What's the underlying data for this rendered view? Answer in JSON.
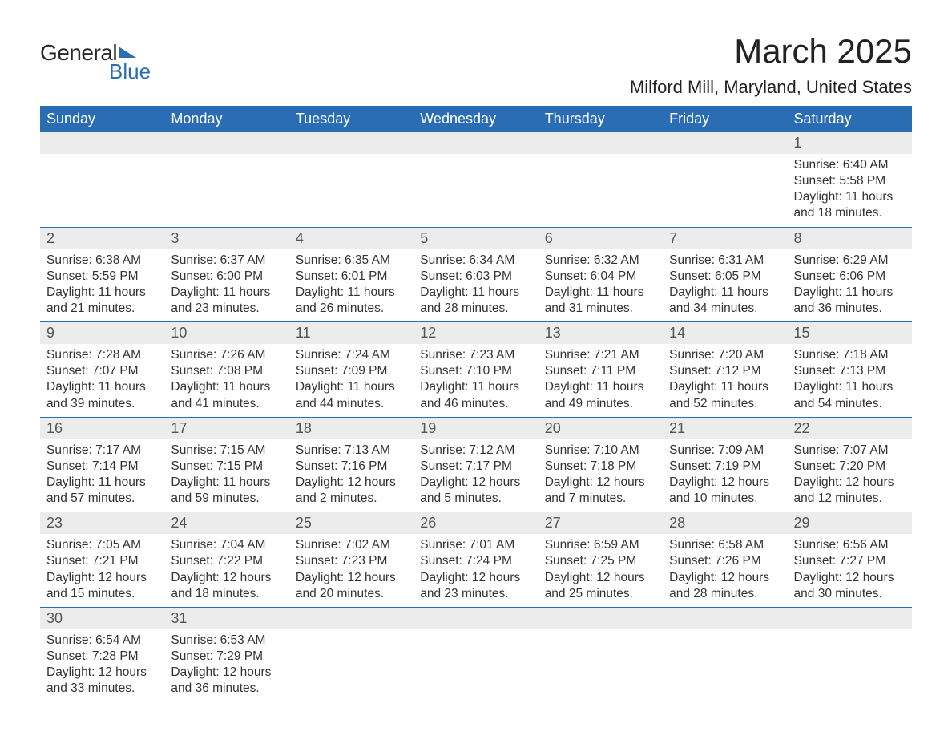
{
  "brand": {
    "general": "General",
    "blue": "Blue"
  },
  "title": "March 2025",
  "location": "Milford Mill, Maryland, United States",
  "colors": {
    "header_bg": "#2a6db5",
    "header_fg": "#ffffff",
    "daynum_bg": "#ececec",
    "text": "#333333",
    "row_divider": "#2a6db5",
    "background": "#ffffff"
  },
  "typography": {
    "title_fontsize": 42,
    "location_fontsize": 22,
    "header_fontsize": 18,
    "daynum_fontsize": 18,
    "data_fontsize": 15.5
  },
  "weekdays": [
    "Sunday",
    "Monday",
    "Tuesday",
    "Wednesday",
    "Thursday",
    "Friday",
    "Saturday"
  ],
  "weeks": [
    [
      null,
      null,
      null,
      null,
      null,
      null,
      {
        "n": "1",
        "sunrise": "6:40 AM",
        "sunset": "5:58 PM",
        "daylight": "11 hours and 18 minutes."
      }
    ],
    [
      {
        "n": "2",
        "sunrise": "6:38 AM",
        "sunset": "5:59 PM",
        "daylight": "11 hours and 21 minutes."
      },
      {
        "n": "3",
        "sunrise": "6:37 AM",
        "sunset": "6:00 PM",
        "daylight": "11 hours and 23 minutes."
      },
      {
        "n": "4",
        "sunrise": "6:35 AM",
        "sunset": "6:01 PM",
        "daylight": "11 hours and 26 minutes."
      },
      {
        "n": "5",
        "sunrise": "6:34 AM",
        "sunset": "6:03 PM",
        "daylight": "11 hours and 28 minutes."
      },
      {
        "n": "6",
        "sunrise": "6:32 AM",
        "sunset": "6:04 PM",
        "daylight": "11 hours and 31 minutes."
      },
      {
        "n": "7",
        "sunrise": "6:31 AM",
        "sunset": "6:05 PM",
        "daylight": "11 hours and 34 minutes."
      },
      {
        "n": "8",
        "sunrise": "6:29 AM",
        "sunset": "6:06 PM",
        "daylight": "11 hours and 36 minutes."
      }
    ],
    [
      {
        "n": "9",
        "sunrise": "7:28 AM",
        "sunset": "7:07 PM",
        "daylight": "11 hours and 39 minutes."
      },
      {
        "n": "10",
        "sunrise": "7:26 AM",
        "sunset": "7:08 PM",
        "daylight": "11 hours and 41 minutes."
      },
      {
        "n": "11",
        "sunrise": "7:24 AM",
        "sunset": "7:09 PM",
        "daylight": "11 hours and 44 minutes."
      },
      {
        "n": "12",
        "sunrise": "7:23 AM",
        "sunset": "7:10 PM",
        "daylight": "11 hours and 46 minutes."
      },
      {
        "n": "13",
        "sunrise": "7:21 AM",
        "sunset": "7:11 PM",
        "daylight": "11 hours and 49 minutes."
      },
      {
        "n": "14",
        "sunrise": "7:20 AM",
        "sunset": "7:12 PM",
        "daylight": "11 hours and 52 minutes."
      },
      {
        "n": "15",
        "sunrise": "7:18 AM",
        "sunset": "7:13 PM",
        "daylight": "11 hours and 54 minutes."
      }
    ],
    [
      {
        "n": "16",
        "sunrise": "7:17 AM",
        "sunset": "7:14 PM",
        "daylight": "11 hours and 57 minutes."
      },
      {
        "n": "17",
        "sunrise": "7:15 AM",
        "sunset": "7:15 PM",
        "daylight": "11 hours and 59 minutes."
      },
      {
        "n": "18",
        "sunrise": "7:13 AM",
        "sunset": "7:16 PM",
        "daylight": "12 hours and 2 minutes."
      },
      {
        "n": "19",
        "sunrise": "7:12 AM",
        "sunset": "7:17 PM",
        "daylight": "12 hours and 5 minutes."
      },
      {
        "n": "20",
        "sunrise": "7:10 AM",
        "sunset": "7:18 PM",
        "daylight": "12 hours and 7 minutes."
      },
      {
        "n": "21",
        "sunrise": "7:09 AM",
        "sunset": "7:19 PM",
        "daylight": "12 hours and 10 minutes."
      },
      {
        "n": "22",
        "sunrise": "7:07 AM",
        "sunset": "7:20 PM",
        "daylight": "12 hours and 12 minutes."
      }
    ],
    [
      {
        "n": "23",
        "sunrise": "7:05 AM",
        "sunset": "7:21 PM",
        "daylight": "12 hours and 15 minutes."
      },
      {
        "n": "24",
        "sunrise": "7:04 AM",
        "sunset": "7:22 PM",
        "daylight": "12 hours and 18 minutes."
      },
      {
        "n": "25",
        "sunrise": "7:02 AM",
        "sunset": "7:23 PM",
        "daylight": "12 hours and 20 minutes."
      },
      {
        "n": "26",
        "sunrise": "7:01 AM",
        "sunset": "7:24 PM",
        "daylight": "12 hours and 23 minutes."
      },
      {
        "n": "27",
        "sunrise": "6:59 AM",
        "sunset": "7:25 PM",
        "daylight": "12 hours and 25 minutes."
      },
      {
        "n": "28",
        "sunrise": "6:58 AM",
        "sunset": "7:26 PM",
        "daylight": "12 hours and 28 minutes."
      },
      {
        "n": "29",
        "sunrise": "6:56 AM",
        "sunset": "7:27 PM",
        "daylight": "12 hours and 30 minutes."
      }
    ],
    [
      {
        "n": "30",
        "sunrise": "6:54 AM",
        "sunset": "7:28 PM",
        "daylight": "12 hours and 33 minutes."
      },
      {
        "n": "31",
        "sunrise": "6:53 AM",
        "sunset": "7:29 PM",
        "daylight": "12 hours and 36 minutes."
      },
      null,
      null,
      null,
      null,
      null
    ]
  ],
  "labels": {
    "sunrise": "Sunrise:",
    "sunset": "Sunset:",
    "daylight": "Daylight:"
  }
}
